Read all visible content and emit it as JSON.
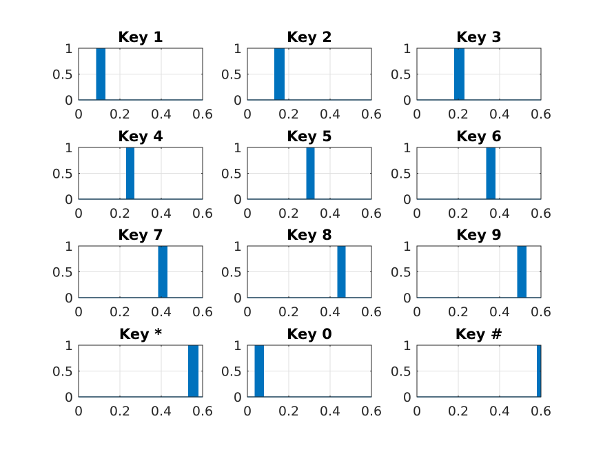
{
  "chart_data": [
    {
      "type": "bar",
      "title": "Key 1",
      "xlim": [
        0,
        0.6
      ],
      "ylim": [
        0,
        1
      ],
      "xticks": [
        "0",
        "0.2",
        "0.4",
        "0.6"
      ],
      "yticks": [
        "0",
        "0.5",
        "1"
      ],
      "grid": true,
      "bar_color": "#0072bd",
      "bars": [
        {
          "x_start": 0.085,
          "x_end": 0.13,
          "value": 1
        }
      ]
    },
    {
      "type": "bar",
      "title": "Key 2",
      "xlim": [
        0,
        0.6
      ],
      "ylim": [
        0,
        1
      ],
      "xticks": [
        "0",
        "0.2",
        "0.4",
        "0.6"
      ],
      "yticks": [
        "0",
        "0.5",
        "1"
      ],
      "grid": true,
      "bar_color": "#0072bd",
      "bars": [
        {
          "x_start": 0.13,
          "x_end": 0.18,
          "value": 1
        }
      ]
    },
    {
      "type": "bar",
      "title": "Key 3",
      "xlim": [
        0,
        0.6
      ],
      "ylim": [
        0,
        1
      ],
      "xticks": [
        "0",
        "0.2",
        "0.4",
        "0.6"
      ],
      "yticks": [
        "0",
        "0.5",
        "1"
      ],
      "grid": true,
      "bar_color": "#0072bd",
      "bars": [
        {
          "x_start": 0.18,
          "x_end": 0.23,
          "value": 1
        }
      ]
    },
    {
      "type": "bar",
      "title": "Key 4",
      "xlim": [
        0,
        0.6
      ],
      "ylim": [
        0,
        1
      ],
      "xticks": [
        "0",
        "0.2",
        "0.4",
        "0.6"
      ],
      "yticks": [
        "0",
        "0.5",
        "1"
      ],
      "grid": true,
      "bar_color": "#0072bd",
      "bars": [
        {
          "x_start": 0.23,
          "x_end": 0.27,
          "value": 1
        }
      ]
    },
    {
      "type": "bar",
      "title": "Key 5",
      "xlim": [
        0,
        0.6
      ],
      "ylim": [
        0,
        1
      ],
      "xticks": [
        "0",
        "0.2",
        "0.4",
        "0.6"
      ],
      "yticks": [
        "0",
        "0.5",
        "1"
      ],
      "grid": true,
      "bar_color": "#0072bd",
      "bars": [
        {
          "x_start": 0.285,
          "x_end": 0.325,
          "value": 1
        }
      ]
    },
    {
      "type": "bar",
      "title": "Key 6",
      "xlim": [
        0,
        0.6
      ],
      "ylim": [
        0,
        1
      ],
      "xticks": [
        "0",
        "0.2",
        "0.4",
        "0.6"
      ],
      "yticks": [
        "0",
        "0.5",
        "1"
      ],
      "grid": true,
      "bar_color": "#0072bd",
      "bars": [
        {
          "x_start": 0.335,
          "x_end": 0.38,
          "value": 1
        }
      ]
    },
    {
      "type": "bar",
      "title": "Key 7",
      "xlim": [
        0,
        0.6
      ],
      "ylim": [
        0,
        1
      ],
      "xticks": [
        "0",
        "0.2",
        "0.4",
        "0.6"
      ],
      "yticks": [
        "0",
        "0.5",
        "1"
      ],
      "grid": true,
      "bar_color": "#0072bd",
      "bars": [
        {
          "x_start": 0.385,
          "x_end": 0.43,
          "value": 1
        }
      ]
    },
    {
      "type": "bar",
      "title": "Key 8",
      "xlim": [
        0,
        0.6
      ],
      "ylim": [
        0,
        1
      ],
      "xticks": [
        "0",
        "0.2",
        "0.4",
        "0.6"
      ],
      "yticks": [
        "0",
        "0.5",
        "1"
      ],
      "grid": true,
      "bar_color": "#0072bd",
      "bars": [
        {
          "x_start": 0.435,
          "x_end": 0.475,
          "value": 1
        }
      ]
    },
    {
      "type": "bar",
      "title": "Key 9",
      "xlim": [
        0,
        0.6
      ],
      "ylim": [
        0,
        1
      ],
      "xticks": [
        "0",
        "0.2",
        "0.4",
        "0.6"
      ],
      "yticks": [
        "0",
        "0.5",
        "1"
      ],
      "grid": true,
      "bar_color": "#0072bd",
      "bars": [
        {
          "x_start": 0.485,
          "x_end": 0.53,
          "value": 1
        }
      ]
    },
    {
      "type": "bar",
      "title": "Key *",
      "xlim": [
        0,
        0.6
      ],
      "ylim": [
        0,
        1
      ],
      "xticks": [
        "0",
        "0.2",
        "0.4",
        "0.6"
      ],
      "yticks": [
        "0",
        "0.5",
        "1"
      ],
      "grid": true,
      "bar_color": "#0072bd",
      "bars": [
        {
          "x_start": 0.53,
          "x_end": 0.58,
          "value": 1
        }
      ]
    },
    {
      "type": "bar",
      "title": "Key 0",
      "xlim": [
        0,
        0.6
      ],
      "ylim": [
        0,
        1
      ],
      "xticks": [
        "0",
        "0.2",
        "0.4",
        "0.6"
      ],
      "yticks": [
        "0",
        "0.5",
        "1"
      ],
      "grid": true,
      "bar_color": "#0072bd",
      "bars": [
        {
          "x_start": 0.035,
          "x_end": 0.08,
          "value": 1
        }
      ]
    },
    {
      "type": "bar",
      "title": "Key #",
      "xlim": [
        0,
        0.6
      ],
      "ylim": [
        0,
        1
      ],
      "xticks": [
        "0",
        "0.2",
        "0.4",
        "0.6"
      ],
      "yticks": [
        "0",
        "0.5",
        "1"
      ],
      "grid": true,
      "bar_color": "#0072bd",
      "bars": [
        {
          "x_start": 0.58,
          "x_end": 0.6,
          "value": 1
        }
      ]
    }
  ]
}
